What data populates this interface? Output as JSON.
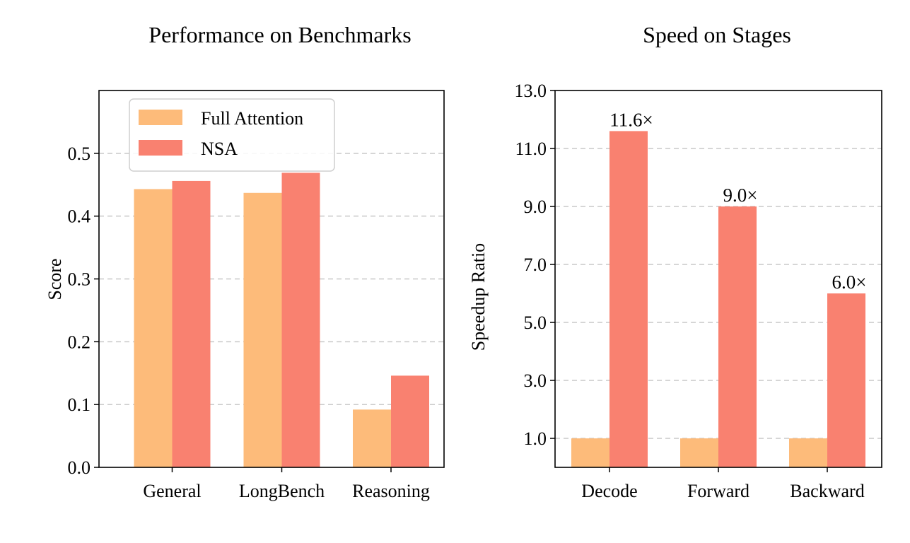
{
  "colors": {
    "full_attention": "#FDBB7A",
    "nsa": "#F98170",
    "grid": "#c8c8c8",
    "axis": "#000000"
  },
  "chart_data": [
    {
      "type": "bar",
      "title": "Performance on Benchmarks",
      "xlabel": "",
      "ylabel": "Score",
      "ylim": [
        0,
        0.6
      ],
      "yticks": [
        "0.0",
        "0.1",
        "0.2",
        "0.3",
        "0.4",
        "0.5"
      ],
      "ytick_values": [
        0.0,
        0.1,
        0.2,
        0.3,
        0.4,
        0.5
      ],
      "grid": "y dashed",
      "legend_position": "top-left",
      "categories": [
        "General",
        "LongBench",
        "Reasoning"
      ],
      "series": [
        {
          "name": "Full Attention",
          "values": [
            0.443,
            0.437,
            0.092
          ]
        },
        {
          "name": "NSA",
          "values": [
            0.456,
            0.469,
            0.146
          ]
        }
      ]
    },
    {
      "type": "bar",
      "title": "Speed on Stages",
      "xlabel": "",
      "ylabel": "Speedup Ratio",
      "ylim": [
        0,
        13.0
      ],
      "yticks": [
        "1.0",
        "3.0",
        "5.0",
        "7.0",
        "9.0",
        "11.0",
        "13.0"
      ],
      "ytick_values": [
        1.0,
        3.0,
        5.0,
        7.0,
        9.0,
        11.0,
        13.0
      ],
      "grid": "y dashed",
      "categories": [
        "Decode",
        "Forward",
        "Backward"
      ],
      "series": [
        {
          "name": "Full Attention",
          "values": [
            1.0,
            1.0,
            1.0
          ]
        },
        {
          "name": "NSA",
          "values": [
            11.6,
            9.0,
            6.0
          ]
        }
      ],
      "annotations": [
        "11.6×",
        "9.0×",
        "6.0×"
      ]
    }
  ]
}
